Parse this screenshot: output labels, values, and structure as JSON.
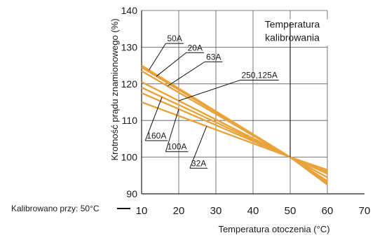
{
  "chart_data": {
    "type": "line",
    "xlabel": "Temperatura otoczenia (°C)",
    "ylabel": "Krotność prądu znamionowego (%)",
    "xlim": [
      10,
      70
    ],
    "ylim": [
      90,
      140
    ],
    "x_ticks": [
      "10",
      "20",
      "30",
      "40",
      "50",
      "60",
      "70"
    ],
    "y_ticks": [
      "90",
      "100",
      "110",
      "120",
      "130",
      "140"
    ],
    "grid": true,
    "annotation": "Temperatura kalibrowania",
    "calibration_label": "Kalibrowano przy: 50°C",
    "calibration_x": 50,
    "line_color": "#e8a33a",
    "series": [
      {
        "name": "50A",
        "x": [
          10,
          50,
          60
        ],
        "y": [
          125,
          100,
          92.5
        ]
      },
      {
        "name": "20A",
        "x": [
          10,
          50,
          60
        ],
        "y": [
          124.5,
          100,
          93
        ]
      },
      {
        "name": "63A",
        "x": [
          10,
          50,
          60
        ],
        "y": [
          123.5,
          100,
          93.5
        ]
      },
      {
        "name": "250,125A",
        "x": [
          10,
          50,
          60
        ],
        "y": [
          120.5,
          100,
          94.5
        ]
      },
      {
        "name": "160A",
        "x": [
          10,
          50,
          60
        ],
        "y": [
          119,
          100,
          95.5
        ]
      },
      {
        "name": "100A",
        "x": [
          10,
          50,
          60
        ],
        "y": [
          117.5,
          100,
          96
        ]
      },
      {
        "name": "32A",
        "x": [
          10,
          50,
          60
        ],
        "y": [
          115,
          100,
          96.5
        ]
      }
    ],
    "callouts": [
      {
        "series": "50A",
        "point_x": 12,
        "label_x": 16.5,
        "label_y": 131
      },
      {
        "series": "20A",
        "point_x": 14,
        "label_x": 22,
        "label_y": 128.5
      },
      {
        "series": "63A",
        "point_x": 17,
        "label_x": 27,
        "label_y": 126
      },
      {
        "series": "250,125A",
        "point_x": 20,
        "label_x": 36.5,
        "label_y": 121
      },
      {
        "series": "160A",
        "point_x": 15.5,
        "label_x": 11,
        "label_y": 104.5
      },
      {
        "series": "100A",
        "point_x": 20,
        "label_x": 16.5,
        "label_y": 101.5
      },
      {
        "series": "32A",
        "point_x": 27.5,
        "label_x": 23,
        "label_y": 97
      }
    ]
  }
}
